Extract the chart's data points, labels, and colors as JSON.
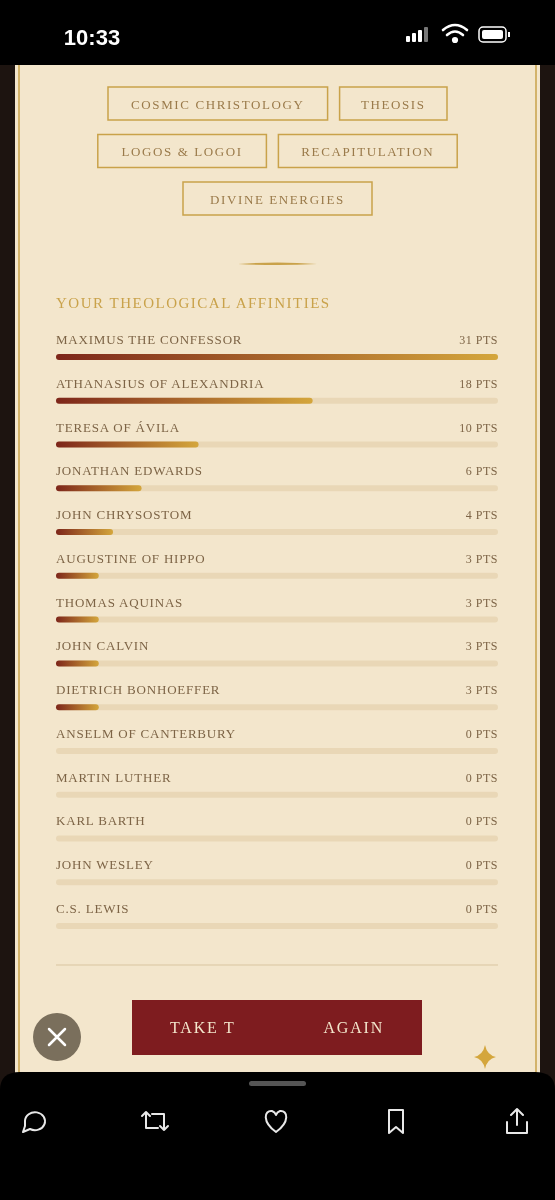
{
  "chart_data": {
    "type": "bar",
    "orientation": "horizontal",
    "title": "YOUR THEOLOGICAL AFFINITIES",
    "categories": [
      "MAXIMUS THE CONFESSOR",
      "ATHANASIUS OF ALEXANDRIA",
      "TERESA OF ÁVILA",
      "JONATHAN EDWARDS",
      "JOHN CHRYSOSTOM",
      "AUGUSTINE OF HIPPO",
      "THOMAS AQUINAS",
      "JOHN CALVIN",
      "DIETRICH BONHOEFFER",
      "ANSELM OF CANTERBURY",
      "MARTIN LUTHER",
      "KARL BARTH",
      "JOHN WESLEY",
      "C.S. LEWIS"
    ],
    "values": [
      31,
      18,
      10,
      6,
      4,
      3,
      3,
      3,
      3,
      0,
      0,
      0,
      0,
      0
    ],
    "value_labels": [
      "31 PTS",
      "18 PTS",
      "10 PTS",
      "6 PTS",
      "4 PTS",
      "3 PTS",
      "3 PTS",
      "3 PTS",
      "3 PTS",
      "0 PTS",
      "0 PTS",
      "0 PTS",
      "0 PTS",
      "0 PTS"
    ],
    "color": "#d4a63c",
    "xlim": [
      0,
      31
    ],
    "tick_labels": "y",
    "annotations": [
      "10:33",
      "COSMIC CHRISTOLOGY",
      "THEOSIS",
      "LOGOS & LOGOI",
      "RECAPITULATION",
      "DIVINE ENERGIES",
      "TAKE T",
      "AGAIN"
    ]
  }
}
